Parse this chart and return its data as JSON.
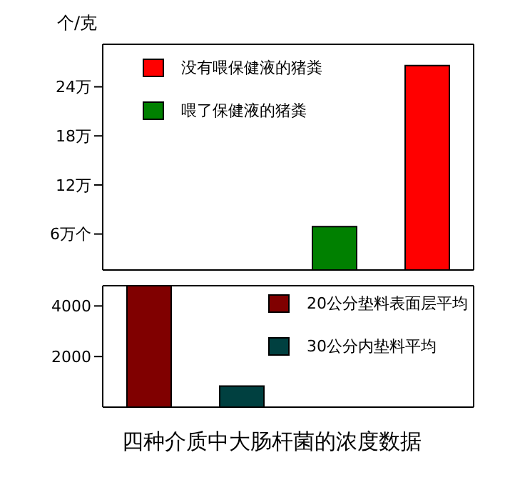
{
  "chart_data": [
    {
      "type": "bar",
      "ylabel": "个/克",
      "categories": [
        null,
        null,
        null,
        null
      ],
      "stacked": true,
      "legend": "top left",
      "series": [
        {
          "name": "没有喂保健液的猪粪",
          "color": "#ff0000",
          "values": [
            null,
            null,
            null,
            26.6
          ]
        },
        {
          "name": "喂了保健液的猪粪",
          "color": "#008000",
          "values": [
            null,
            null,
            6.9,
            null
          ]
        }
      ],
      "ylim": [
        1.6,
        29.2
      ],
      "yticks": [
        {
          "value": 6,
          "label": "6万个"
        },
        {
          "value": 12,
          "label": "12万"
        },
        {
          "value": 18,
          "label": "18万"
        },
        {
          "value": 24,
          "label": "24万"
        }
      ]
    },
    {
      "type": "bar",
      "title": "四种介质中大肠杆菌的浓度数据",
      "categories": [
        null,
        null,
        null,
        null
      ],
      "stacked": true,
      "legend": "top right",
      "series": [
        {
          "name": "20公分垫料表面层平均",
          "color": "#800000",
          "values": [
            4800,
            null,
            null,
            null
          ]
        },
        {
          "name": "30公分内垫料平均",
          "color": "#004040",
          "values": [
            null,
            830,
            null,
            null
          ]
        }
      ],
      "ylim": [
        0,
        4800
      ],
      "yticks": [
        2000,
        4000
      ]
    }
  ]
}
